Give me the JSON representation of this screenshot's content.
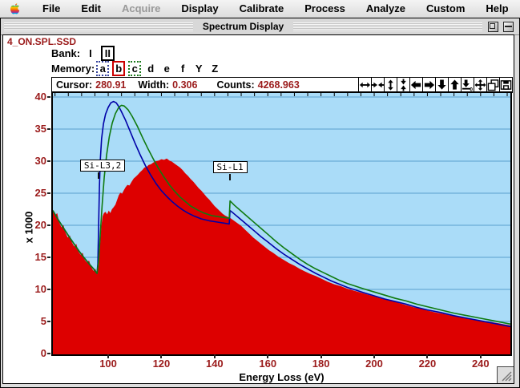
{
  "menu_bar": {
    "items": [
      {
        "label": "File",
        "enabled": true
      },
      {
        "label": "Edit",
        "enabled": true
      },
      {
        "label": "Acquire",
        "enabled": false
      },
      {
        "label": "Display",
        "enabled": true
      },
      {
        "label": "Calibrate",
        "enabled": true
      },
      {
        "label": "Process",
        "enabled": true
      },
      {
        "label": "Analyze",
        "enabled": true
      },
      {
        "label": "Custom",
        "enabled": true
      },
      {
        "label": "Help",
        "enabled": true
      }
    ]
  },
  "window": {
    "title": "Spectrum Display",
    "buttons": [
      "zoom-box",
      "collapse-box"
    ]
  },
  "file_label": "4_ON.SPL.SSD",
  "bank": {
    "label": "Bank:",
    "options": [
      {
        "label": "I",
        "selected": false
      },
      {
        "label": "II",
        "selected": true
      }
    ]
  },
  "memory": {
    "label": "Memory:",
    "slots": [
      {
        "label": "a",
        "marker": "dotted-navy"
      },
      {
        "label": "b",
        "marker": "solid-red"
      },
      {
        "label": "c",
        "marker": "dotted-green"
      },
      {
        "label": "d",
        "marker": "none"
      },
      {
        "label": "e",
        "marker": "none"
      },
      {
        "label": "f",
        "marker": "none"
      },
      {
        "label": "Y",
        "marker": "none"
      },
      {
        "label": "Z",
        "marker": "none"
      }
    ]
  },
  "readout": {
    "cursor_label": "Cursor:",
    "cursor_value": "280.91",
    "width_label": "Width:",
    "width_value": "0.306",
    "counts_label": "Counts:",
    "counts_value": "4268.963"
  },
  "toolbar_icons": [
    "expand-horizontal-icon",
    "contract-horizontal-icon",
    "expand-vertical-icon",
    "contract-vertical-icon",
    "arrow-left-icon",
    "arrow-right-icon",
    "arrow-down-icon",
    "arrow-up-icon",
    "down-to-zero-icon",
    "move-all-icon",
    "overlay-windows-icon",
    "disk-icon"
  ],
  "colors": {
    "plot_bg": "#aadcf8",
    "grid": "#5b9fce",
    "data_red": "#dd0000",
    "model_blue": "#0000a8",
    "model_green": "#0f7a0f",
    "value_text": "#9b1b1b"
  },
  "chart_data": {
    "type": "area",
    "xlabel": "Energy Loss (eV)",
    "ylabel": "x 1000",
    "x_range": [
      79.2,
      251.2
    ],
    "y_range": [
      0,
      40
    ],
    "xticks": [
      100,
      120,
      140,
      160,
      180,
      200,
      220,
      240
    ],
    "yticks": [
      0,
      5,
      10,
      15,
      20,
      25,
      30,
      35,
      40
    ],
    "grid": true,
    "annotations": [
      {
        "text": "Si-L3,2",
        "edge_ev": 96.5,
        "label_ev": 97.6,
        "label_k": 29.3
      },
      {
        "text": "Si-L1",
        "edge_ev": 145.8,
        "label_ev": 145.5,
        "label_k": 29.0
      }
    ],
    "series": [
      {
        "name": "spectrum-data",
        "memory": "b",
        "type": "area",
        "color": "#dd0000",
        "points": [
          [
            79.2,
            22.4
          ],
          [
            80,
            21.5
          ],
          [
            80.8,
            21.9
          ],
          [
            81.6,
            20.4
          ],
          [
            82.4,
            19.7
          ],
          [
            83.2,
            20.0
          ],
          [
            84,
            18.8
          ],
          [
            84.8,
            18.1
          ],
          [
            85.6,
            18.4
          ],
          [
            86.4,
            17.3
          ],
          [
            87.2,
            16.7
          ],
          [
            88,
            17.1
          ],
          [
            88.8,
            15.9
          ],
          [
            89.6,
            15.4
          ],
          [
            90.4,
            15.7
          ],
          [
            91.2,
            14.6
          ],
          [
            92,
            14.2
          ],
          [
            92.8,
            14.5
          ],
          [
            93.6,
            13.5
          ],
          [
            94.4,
            12.9
          ],
          [
            95.2,
            13.2
          ],
          [
            95.8,
            12.4
          ],
          [
            96.4,
            13.8
          ],
          [
            96.9,
            16.8
          ],
          [
            97.4,
            19.8
          ],
          [
            97.9,
            21.4
          ],
          [
            98.4,
            21.9
          ],
          [
            99,
            22.1
          ],
          [
            99.6,
            21.7
          ],
          [
            100.2,
            22.3
          ],
          [
            100.8,
            21.9
          ],
          [
            101.4,
            22.5
          ],
          [
            102,
            22.8
          ],
          [
            102.7,
            23.2
          ],
          [
            103.4,
            24.0
          ],
          [
            104,
            24.7
          ],
          [
            104.6,
            25.1
          ],
          [
            105.2,
            24.9
          ],
          [
            105.8,
            25.4
          ],
          [
            106.5,
            25.9
          ],
          [
            107.2,
            26.3
          ],
          [
            108,
            26.2
          ],
          [
            108.8,
            26.8
          ],
          [
            109.6,
            27.3
          ],
          [
            110.4,
            27.6
          ],
          [
            111.2,
            27.9
          ],
          [
            112,
            28.3
          ],
          [
            112.8,
            28.6
          ],
          [
            113.6,
            29.0
          ],
          [
            114.4,
            29.1
          ],
          [
            115.2,
            29.4
          ],
          [
            116,
            29.5
          ],
          [
            117,
            29.8
          ],
          [
            118,
            30.0
          ],
          [
            119,
            30.1
          ],
          [
            120,
            30.3
          ],
          [
            121,
            30.2
          ],
          [
            122,
            30.4
          ],
          [
            123,
            30.1
          ],
          [
            124,
            29.9
          ],
          [
            125,
            29.6
          ],
          [
            126,
            29.3
          ],
          [
            127,
            29.0
          ],
          [
            128,
            28.6
          ],
          [
            129,
            28.1
          ],
          [
            130,
            27.7
          ],
          [
            131,
            27.2
          ],
          [
            132,
            26.8
          ],
          [
            133,
            26.3
          ],
          [
            134,
            25.8
          ],
          [
            135,
            25.4
          ],
          [
            136,
            24.9
          ],
          [
            137,
            24.4
          ],
          [
            138,
            24.0
          ],
          [
            139,
            23.5
          ],
          [
            140,
            23.0
          ],
          [
            141,
            22.6
          ],
          [
            142,
            22.2
          ],
          [
            143,
            21.8
          ],
          [
            144,
            21.5
          ],
          [
            145,
            21.3
          ],
          [
            146,
            21.1
          ],
          [
            147,
            20.8
          ],
          [
            148,
            20.5
          ],
          [
            149,
            20.2
          ],
          [
            150,
            19.9
          ],
          [
            151.5,
            19.3
          ],
          [
            153,
            18.7
          ],
          [
            154.5,
            18.1
          ],
          [
            156,
            17.6
          ],
          [
            157.5,
            17.1
          ],
          [
            159,
            16.6
          ],
          [
            160.5,
            16.1
          ],
          [
            162,
            15.7
          ],
          [
            164,
            15.1
          ],
          [
            166,
            14.6
          ],
          [
            168,
            14.1
          ],
          [
            170,
            13.7
          ],
          [
            172,
            13.2
          ],
          [
            174,
            12.8
          ],
          [
            176,
            12.4
          ],
          [
            178,
            12.1
          ],
          [
            180,
            11.7
          ],
          [
            182.5,
            11.2
          ],
          [
            185,
            10.8
          ],
          [
            187.5,
            10.5
          ],
          [
            190,
            10.1
          ],
          [
            192.5,
            9.8
          ],
          [
            195,
            9.5
          ],
          [
            197.5,
            9.2
          ],
          [
            200,
            8.9
          ],
          [
            202.5,
            8.6
          ],
          [
            205,
            8.4
          ],
          [
            207.5,
            8.1
          ],
          [
            210,
            7.8
          ],
          [
            212.5,
            7.5
          ],
          [
            215,
            7.2
          ],
          [
            217.5,
            7.0
          ],
          [
            220,
            6.7
          ],
          [
            223,
            6.4
          ],
          [
            226,
            6.2
          ],
          [
            229,
            5.9
          ],
          [
            232,
            5.7
          ],
          [
            235,
            5.5
          ],
          [
            238,
            5.3
          ],
          [
            241,
            5.1
          ],
          [
            244,
            4.9
          ],
          [
            247,
            4.7
          ],
          [
            249.5,
            4.5
          ],
          [
            251.2,
            4.4
          ]
        ]
      },
      {
        "name": "model-fit-blue",
        "memory": "a",
        "type": "line",
        "color": "#0000a8",
        "points": [
          [
            79.2,
            22.3
          ],
          [
            81,
            21.0
          ],
          [
            83,
            19.7
          ],
          [
            85,
            18.4
          ],
          [
            87,
            17.2
          ],
          [
            89,
            16.0
          ],
          [
            91,
            14.9
          ],
          [
            93,
            13.9
          ],
          [
            94.5,
            13.2
          ],
          [
            95.8,
            12.5
          ],
          [
            96.1,
            14.0
          ],
          [
            96.4,
            20.0
          ],
          [
            96.7,
            26.0
          ],
          [
            97.0,
            30.0
          ],
          [
            97.5,
            33.5
          ],
          [
            98.2,
            35.8
          ],
          [
            99,
            37.3
          ],
          [
            100,
            38.4
          ],
          [
            101,
            39.1
          ],
          [
            102,
            39.3
          ],
          [
            103,
            39.1
          ],
          [
            104,
            38.5
          ],
          [
            105,
            37.7
          ],
          [
            106.5,
            36.4
          ],
          [
            108,
            34.9
          ],
          [
            110,
            32.9
          ],
          [
            112,
            31.0
          ],
          [
            114,
            29.3
          ],
          [
            116,
            27.8
          ],
          [
            118,
            26.5
          ],
          [
            120,
            25.4
          ],
          [
            122,
            24.5
          ],
          [
            124,
            23.7
          ],
          [
            126,
            23.0
          ],
          [
            128,
            22.4
          ],
          [
            130,
            21.9
          ],
          [
            132.5,
            21.4
          ],
          [
            135,
            21.0
          ],
          [
            138,
            20.7
          ],
          [
            141,
            20.5
          ],
          [
            144,
            20.3
          ],
          [
            145.5,
            20.2
          ],
          [
            145.8,
            22.3
          ],
          [
            147,
            21.9
          ],
          [
            149,
            21.2
          ],
          [
            151,
            20.5
          ],
          [
            153,
            19.8
          ],
          [
            155,
            19.1
          ],
          [
            157.5,
            18.2
          ],
          [
            160,
            17.4
          ],
          [
            163,
            16.4
          ],
          [
            166,
            15.5
          ],
          [
            169,
            14.7
          ],
          [
            172,
            13.9
          ],
          [
            175,
            13.2
          ],
          [
            178,
            12.5
          ],
          [
            181,
            11.9
          ],
          [
            184,
            11.3
          ],
          [
            187,
            10.8
          ],
          [
            190,
            10.3
          ],
          [
            193,
            9.9
          ],
          [
            196,
            9.5
          ],
          [
            200,
            9.0
          ],
          [
            204,
            8.5
          ],
          [
            208,
            8.1
          ],
          [
            212,
            7.7
          ],
          [
            216,
            7.2
          ],
          [
            220,
            6.8
          ],
          [
            225,
            6.4
          ],
          [
            230,
            5.9
          ],
          [
            235,
            5.5
          ],
          [
            240,
            5.1
          ],
          [
            245,
            4.7
          ],
          [
            251.2,
            4.2
          ]
        ]
      },
      {
        "name": "model-fit-green",
        "memory": "c",
        "type": "line",
        "color": "#0f7a0f",
        "points": [
          [
            79.2,
            22.3
          ],
          [
            81,
            21.0
          ],
          [
            83,
            19.7
          ],
          [
            85,
            18.4
          ],
          [
            87,
            17.2
          ],
          [
            89,
            16.0
          ],
          [
            91,
            14.9
          ],
          [
            93,
            13.9
          ],
          [
            94.5,
            13.2
          ],
          [
            95.8,
            12.5
          ],
          [
            96.4,
            14.5
          ],
          [
            97,
            18.5
          ],
          [
            97.7,
            23.0
          ],
          [
            98.5,
            27.5
          ],
          [
            99.4,
            31.0
          ],
          [
            100.4,
            33.8
          ],
          [
            101.5,
            35.9
          ],
          [
            102.7,
            37.4
          ],
          [
            104,
            38.4
          ],
          [
            105,
            38.7
          ],
          [
            106,
            38.6
          ],
          [
            107.5,
            38.0
          ],
          [
            109,
            37.0
          ],
          [
            111,
            35.4
          ],
          [
            113,
            33.6
          ],
          [
            115,
            31.9
          ],
          [
            117,
            30.3
          ],
          [
            119,
            28.8
          ],
          [
            121,
            27.5
          ],
          [
            123,
            26.3
          ],
          [
            125,
            25.3
          ],
          [
            127,
            24.4
          ],
          [
            129,
            23.7
          ],
          [
            131,
            23.0
          ],
          [
            133.5,
            22.4
          ],
          [
            136,
            21.9
          ],
          [
            139,
            21.5
          ],
          [
            142,
            21.3
          ],
          [
            145.5,
            21.1
          ],
          [
            145.8,
            23.8
          ],
          [
            147.5,
            23.1
          ],
          [
            150,
            22.2
          ],
          [
            152.5,
            21.3
          ],
          [
            155,
            20.4
          ],
          [
            157.5,
            19.5
          ],
          [
            160,
            18.6
          ],
          [
            163,
            17.5
          ],
          [
            166,
            16.5
          ],
          [
            169,
            15.6
          ],
          [
            172,
            14.7
          ],
          [
            175,
            13.9
          ],
          [
            178,
            13.2
          ],
          [
            181,
            12.6
          ],
          [
            184,
            12.0
          ],
          [
            187,
            11.4
          ],
          [
            190,
            10.9
          ],
          [
            193,
            10.5
          ],
          [
            196,
            10.1
          ],
          [
            200,
            9.6
          ],
          [
            204,
            9.1
          ],
          [
            208,
            8.6
          ],
          [
            212,
            8.2
          ],
          [
            216,
            7.7
          ],
          [
            220,
            7.3
          ],
          [
            225,
            6.8
          ],
          [
            230,
            6.3
          ],
          [
            235,
            5.9
          ],
          [
            240,
            5.5
          ],
          [
            245,
            5.1
          ],
          [
            251.2,
            4.6
          ]
        ]
      }
    ]
  }
}
